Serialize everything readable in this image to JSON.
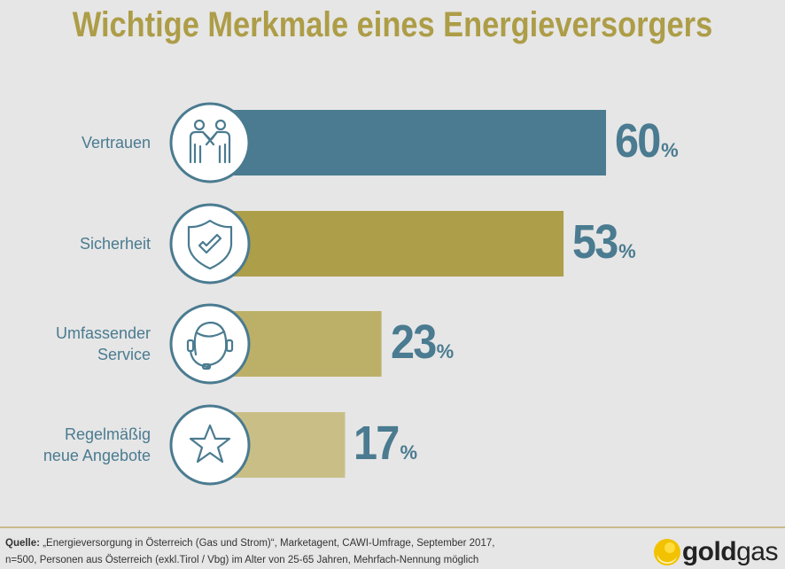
{
  "chart_data": {
    "type": "bar",
    "orientation": "horizontal",
    "title": "Wichtige Merkmale eines Energieversorgers",
    "categories": [
      [
        "Vertrauen"
      ],
      [
        "Sicherheit"
      ],
      [
        "Umfassender",
        "Service"
      ],
      [
        "Regelmäßig",
        "neue Angebote"
      ]
    ],
    "values": [
      60,
      53,
      23,
      17
    ],
    "value_suffix": "%",
    "icons": [
      "handshake-people-icon",
      "shield-check-icon",
      "headset-agent-icon",
      "star-icon"
    ],
    "colors": [
      "#4a7b90",
      "#ad9e4a",
      "#bcb068",
      "#c9bf86"
    ],
    "xlim": [
      0,
      60
    ],
    "grid": false,
    "legend": "none"
  },
  "footer": {
    "source_label": "Quelle:",
    "source_line1": "„Energieversorgung in Österreich (Gas und Strom)“, Marketagent, CAWI-Umfrage, September 2017,",
    "source_line2": "n=500, Personen aus Österreich (exkl.Tirol / Vbg) im Alter von 25-65 Jahren, Mehrfach-Nennung möglich"
  },
  "logo": {
    "bold": "gold",
    "regular": "gas"
  },
  "colors": {
    "accent_blue": "#4a7b90",
    "title_gold": "#ad9d47",
    "background": "#e6e6e6"
  }
}
